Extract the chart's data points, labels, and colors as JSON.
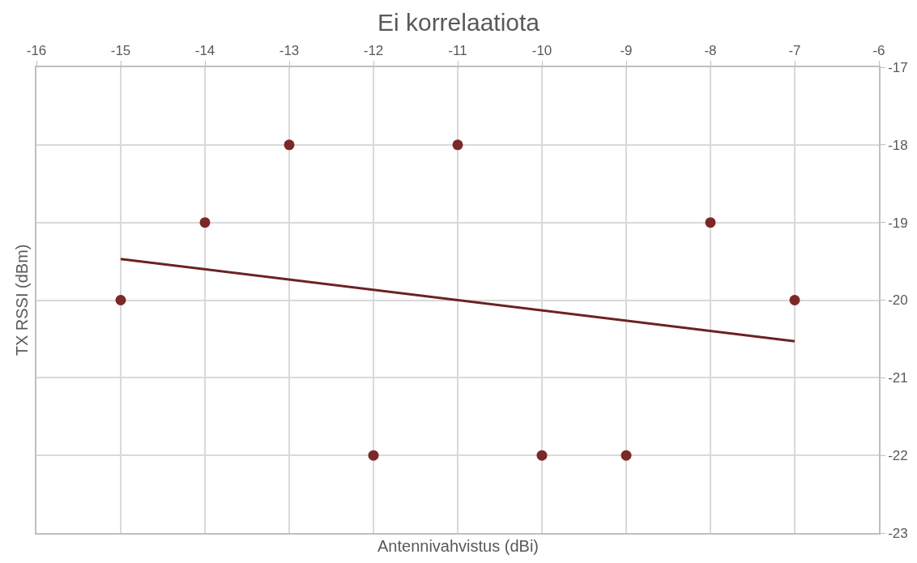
{
  "chart_data": {
    "type": "scatter",
    "title": "Ei korrelaatiota",
    "xlabel": "Antennivahvistus (dBi)",
    "ylabel": "TX RSSI (dBm)",
    "series": [
      {
        "color": "#7b2828",
        "marker": "circle",
        "x": [
          -15,
          -14,
          -13,
          -12,
          -11,
          -10,
          -9,
          -8,
          -7
        ],
        "values": [
          -20,
          -19,
          -18,
          -22,
          -18,
          -22,
          -22,
          -19,
          -20
        ]
      },
      {
        "type": "line",
        "marker": "none",
        "color": "#6b2222",
        "x": [
          -15,
          -7
        ],
        "values": [
          -19.47,
          -20.53
        ]
      }
    ],
    "xlim": [
      -16,
      -6
    ],
    "xticks": [
      -16,
      -15,
      -14,
      -13,
      -12,
      -11,
      -10,
      -9,
      -8,
      -7,
      -6
    ],
    "ylim": [
      -23,
      -17
    ],
    "yticks": [
      -23,
      -22,
      -21,
      -20,
      -19,
      -18,
      -17
    ],
    "grid": true,
    "line_style": "solid"
  }
}
